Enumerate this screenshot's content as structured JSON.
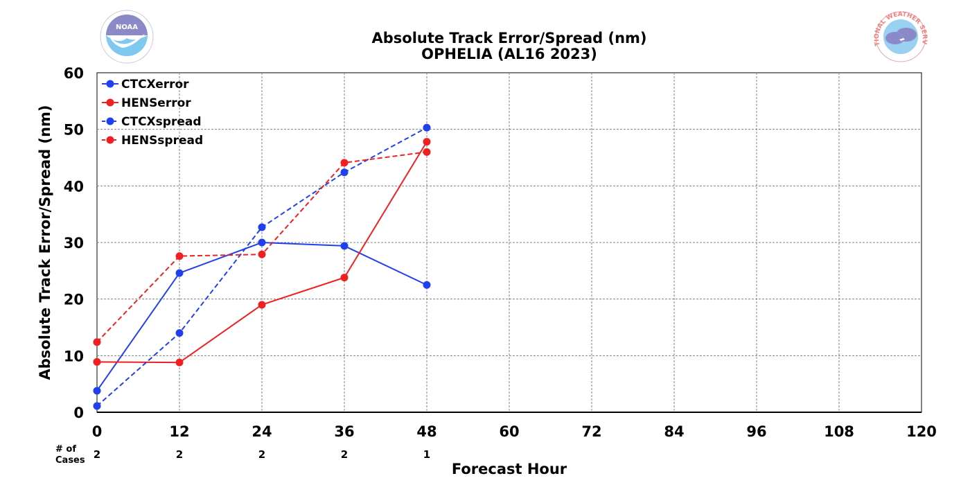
{
  "chart_data": {
    "type": "line",
    "title": "Absolute Track Error/Spread (nm)",
    "subtitle": "OPHELIA (AL16 2023)",
    "xlabel": "Forecast Hour",
    "ylabel": "Absolute Track Error/Spread (nm)",
    "xlim": [
      0,
      120
    ],
    "ylim": [
      0,
      60
    ],
    "x_ticks": [
      0,
      12,
      24,
      36,
      48,
      60,
      72,
      84,
      96,
      108,
      120
    ],
    "y_ticks": [
      0,
      10,
      20,
      30,
      40,
      50,
      60
    ],
    "grid": true,
    "legend_position": "top-left",
    "series": [
      {
        "name": "CTCXerror",
        "color": "#2040f0",
        "dashed": false,
        "x": [
          0,
          12,
          24,
          36,
          48
        ],
        "values": [
          3.8,
          24.6,
          30.0,
          29.4,
          22.5
        ]
      },
      {
        "name": "HENSerror",
        "color": "#f02020",
        "dashed": false,
        "x": [
          0,
          12,
          24,
          36,
          48
        ],
        "values": [
          8.9,
          8.8,
          19.0,
          23.8,
          47.8
        ]
      },
      {
        "name": "CTCXspread",
        "color": "#2040f0",
        "dashed": true,
        "x": [
          0,
          12,
          24,
          36,
          48
        ],
        "values": [
          1.1,
          14.0,
          32.7,
          42.4,
          50.3
        ]
      },
      {
        "name": "HENSspread",
        "color": "#f02020",
        "dashed": true,
        "x": [
          0,
          12,
          24,
          36,
          48
        ],
        "values": [
          12.4,
          27.6,
          27.9,
          44.1,
          46.0
        ]
      }
    ],
    "cases": {
      "label_line1": "# of",
      "label_line2": "Cases",
      "x": [
        0,
        12,
        24,
        36,
        48
      ],
      "values": [
        "2",
        "2",
        "2",
        "2",
        "1"
      ]
    }
  },
  "logos": {
    "left": {
      "name": "noaa-logo",
      "text": "NOAA",
      "colors": {
        "ring": "#ffffff",
        "top": "#8a8ac8",
        "bottom": "#7fc8f0"
      }
    },
    "right": {
      "name": "nws-logo",
      "text": "NATIONAL WEATHER SERVICE",
      "colors": {
        "ring": "#f08080",
        "sky": "#9ad0f0",
        "cloud": "#8a8ac8"
      }
    }
  }
}
